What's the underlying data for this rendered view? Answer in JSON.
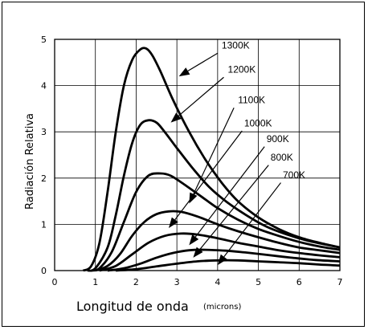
{
  "chart_data": {
    "type": "line",
    "xlabel": "Longitud de onda",
    "xlabel_units": "(microns)",
    "ylabel": "Radiación Relativa",
    "xlim": [
      0,
      7
    ],
    "ylim": [
      0,
      5
    ],
    "x_ticks": [
      "0",
      "1",
      "2",
      "3",
      "4",
      "5",
      "6",
      "7"
    ],
    "y_ticks": [
      "0",
      "1",
      "2",
      "3",
      "4",
      "5"
    ],
    "grid": true,
    "line_color": "#000000",
    "series": [
      {
        "name": "1300K",
        "label_at": [
          4.1,
          4.8
        ],
        "points": [
          [
            0.7,
            0
          ],
          [
            0.9,
            0.1
          ],
          [
            1.1,
            0.6
          ],
          [
            1.3,
            1.7
          ],
          [
            1.5,
            3.0
          ],
          [
            1.7,
            4.0
          ],
          [
            1.9,
            4.55
          ],
          [
            2.1,
            4.78
          ],
          [
            2.25,
            4.8
          ],
          [
            2.4,
            4.65
          ],
          [
            2.6,
            4.3
          ],
          [
            2.9,
            3.7
          ],
          [
            3.3,
            3.0
          ],
          [
            3.7,
            2.4
          ],
          [
            4.1,
            1.9
          ],
          [
            4.5,
            1.5
          ],
          [
            5.0,
            1.15
          ],
          [
            5.5,
            0.9
          ],
          [
            6.0,
            0.72
          ],
          [
            6.5,
            0.6
          ],
          [
            7.0,
            0.5
          ]
        ]
      },
      {
        "name": "1200K",
        "label_at": [
          4.25,
          4.28
        ],
        "points": [
          [
            0.8,
            0
          ],
          [
            1.0,
            0.05
          ],
          [
            1.3,
            0.5
          ],
          [
            1.5,
            1.2
          ],
          [
            1.7,
            2.05
          ],
          [
            1.9,
            2.75
          ],
          [
            2.1,
            3.15
          ],
          [
            2.3,
            3.25
          ],
          [
            2.5,
            3.2
          ],
          [
            2.7,
            3.0
          ],
          [
            3.0,
            2.65
          ],
          [
            3.4,
            2.2
          ],
          [
            3.8,
            1.8
          ],
          [
            4.2,
            1.5
          ],
          [
            4.7,
            1.2
          ],
          [
            5.2,
            0.95
          ],
          [
            5.7,
            0.78
          ],
          [
            6.2,
            0.65
          ],
          [
            7.0,
            0.5
          ]
        ]
      },
      {
        "name": "1100K",
        "label_at": [
          4.5,
          3.62
        ],
        "points": [
          [
            0.9,
            0
          ],
          [
            1.1,
            0.05
          ],
          [
            1.4,
            0.4
          ],
          [
            1.7,
            1.05
          ],
          [
            2.0,
            1.7
          ],
          [
            2.3,
            2.05
          ],
          [
            2.6,
            2.1
          ],
          [
            2.85,
            2.05
          ],
          [
            3.2,
            1.85
          ],
          [
            3.6,
            1.6
          ],
          [
            4.0,
            1.35
          ],
          [
            4.5,
            1.1
          ],
          [
            5.0,
            0.9
          ],
          [
            5.5,
            0.75
          ],
          [
            6.0,
            0.62
          ],
          [
            6.5,
            0.52
          ],
          [
            7.0,
            0.45
          ]
        ]
      },
      {
        "name": "1000K",
        "label_at": [
          4.65,
          3.12
        ],
        "points": [
          [
            1.0,
            0
          ],
          [
            1.3,
            0.1
          ],
          [
            1.6,
            0.35
          ],
          [
            1.9,
            0.75
          ],
          [
            2.2,
            1.05
          ],
          [
            2.5,
            1.22
          ],
          [
            2.8,
            1.28
          ],
          [
            3.1,
            1.27
          ],
          [
            3.5,
            1.17
          ],
          [
            4.0,
            1.0
          ],
          [
            4.5,
            0.85
          ],
          [
            5.0,
            0.72
          ],
          [
            5.5,
            0.6
          ],
          [
            6.0,
            0.5
          ],
          [
            6.5,
            0.44
          ],
          [
            7.0,
            0.38
          ]
        ]
      },
      {
        "name": "900K",
        "label_at": [
          5.2,
          2.78
        ],
        "points": [
          [
            1.1,
            0
          ],
          [
            1.5,
            0.1
          ],
          [
            1.9,
            0.35
          ],
          [
            2.3,
            0.6
          ],
          [
            2.7,
            0.75
          ],
          [
            3.1,
            0.8
          ],
          [
            3.5,
            0.78
          ],
          [
            4.0,
            0.7
          ],
          [
            4.5,
            0.6
          ],
          [
            5.0,
            0.52
          ],
          [
            5.5,
            0.44
          ],
          [
            6.0,
            0.38
          ],
          [
            6.5,
            0.33
          ],
          [
            7.0,
            0.29
          ]
        ]
      },
      {
        "name": "800K",
        "label_at": [
          5.3,
          2.38
        ],
        "points": [
          [
            1.3,
            0
          ],
          [
            1.7,
            0.05
          ],
          [
            2.1,
            0.15
          ],
          [
            2.5,
            0.28
          ],
          [
            2.9,
            0.38
          ],
          [
            3.3,
            0.44
          ],
          [
            3.7,
            0.45
          ],
          [
            4.2,
            0.43
          ],
          [
            4.7,
            0.39
          ],
          [
            5.2,
            0.34
          ],
          [
            5.8,
            0.28
          ],
          [
            6.4,
            0.23
          ],
          [
            7.0,
            0.2
          ]
        ]
      },
      {
        "name": "700K",
        "label_at": [
          5.6,
          2.0
        ],
        "points": [
          [
            1.5,
            0
          ],
          [
            2.0,
            0.03
          ],
          [
            2.5,
            0.09
          ],
          [
            3.0,
            0.15
          ],
          [
            3.5,
            0.2
          ],
          [
            4.0,
            0.22
          ],
          [
            4.5,
            0.22
          ],
          [
            5.0,
            0.2
          ],
          [
            5.5,
            0.18
          ],
          [
            6.0,
            0.16
          ],
          [
            6.5,
            0.13
          ],
          [
            7.0,
            0.11
          ]
        ]
      }
    ],
    "arrows": [
      {
        "from": [
          4.0,
          4.7
        ],
        "to": [
          3.05,
          4.2
        ]
      },
      {
        "from": [
          4.15,
          4.18
        ],
        "to": [
          2.85,
          3.2
        ]
      },
      {
        "from": [
          4.4,
          3.52
        ],
        "to": [
          3.3,
          1.45
        ]
      },
      {
        "from": [
          4.6,
          3.02
        ],
        "to": [
          2.8,
          0.92
        ]
      },
      {
        "from": [
          5.15,
          2.68
        ],
        "to": [
          3.3,
          0.55
        ]
      },
      {
        "from": [
          5.25,
          2.28
        ],
        "to": [
          3.4,
          0.28
        ]
      },
      {
        "from": [
          5.55,
          1.9
        ],
        "to": [
          4.0,
          0.12
        ]
      }
    ]
  }
}
